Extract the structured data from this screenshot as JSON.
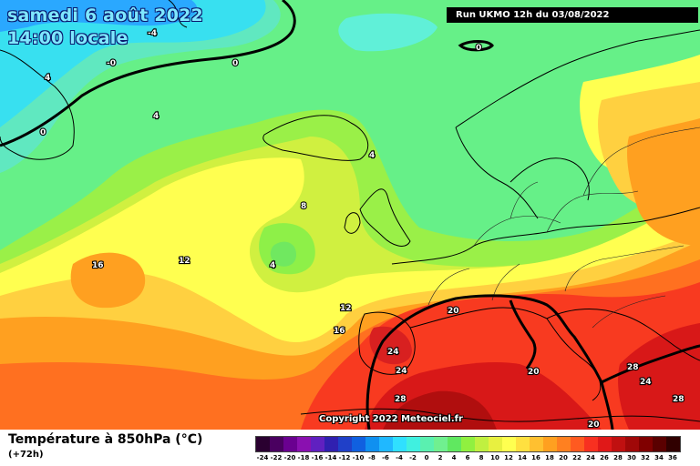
{
  "title": {
    "line1": "samedi 6 août 2022",
    "line2": "14:00 locale"
  },
  "run_info": "Run UKMO 12h du 03/08/2022",
  "copyright": "Copyright 2022 Meteociel.fr",
  "legend": {
    "title": "Température à 850hPa (°C)",
    "subtitle": "(+72h)",
    "ticks": [
      "-24",
      "-22",
      "-20",
      "-18",
      "-16",
      "-14",
      "-12",
      "-10",
      "-8",
      "-6",
      "-4",
      "-2",
      "0",
      "2",
      "4",
      "6",
      "8",
      "10",
      "12",
      "14",
      "16",
      "18",
      "20",
      "22",
      "24",
      "26",
      "28",
      "30",
      "32",
      "34",
      "36"
    ],
    "colors": [
      "#2a0030",
      "#4a0060",
      "#6a0090",
      "#8a10b0",
      "#6020c0",
      "#3020b0",
      "#2040c8",
      "#1060e0",
      "#1090f0",
      "#20b8ff",
      "#30e0ff",
      "#40f0e0",
      "#5af0b0",
      "#70f090",
      "#60e860",
      "#90f040",
      "#c0f040",
      "#e8f040",
      "#ffff50",
      "#ffe040",
      "#ffc030",
      "#ffa020",
      "#ff8020",
      "#ff5a20",
      "#f83020",
      "#e01818",
      "#c01010",
      "#a00808",
      "#800000",
      "#5a0000",
      "#300000"
    ]
  },
  "map_labels": [
    {
      "text": "-4"
    },
    {
      "text": "-0"
    },
    {
      "text": "0"
    },
    {
      "text": "0"
    },
    {
      "text": "4"
    },
    {
      "text": "4"
    },
    {
      "text": "0"
    },
    {
      "text": "4"
    },
    {
      "text": "8"
    },
    {
      "text": "12"
    },
    {
      "text": "16"
    },
    {
      "text": "4"
    },
    {
      "text": "12"
    },
    {
      "text": "16"
    },
    {
      "text": "20"
    },
    {
      "text": "24"
    },
    {
      "text": "24"
    },
    {
      "text": "28"
    },
    {
      "text": "20"
    },
    {
      "text": "28"
    },
    {
      "text": "24"
    },
    {
      "text": "28"
    },
    {
      "text": "20"
    }
  ]
}
